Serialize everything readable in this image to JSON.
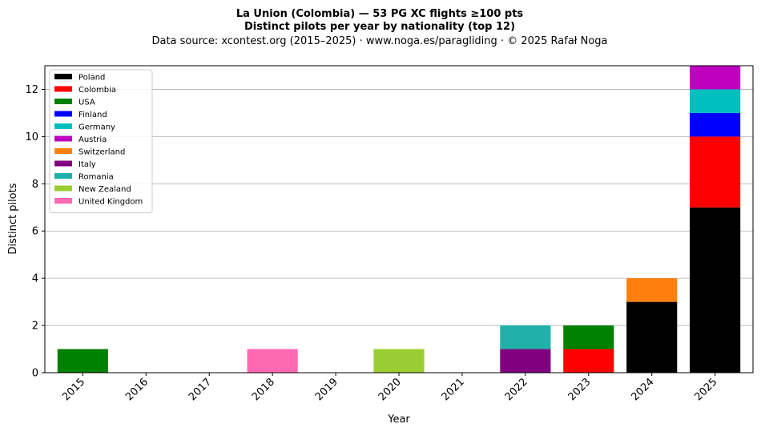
{
  "chart_data": {
    "type": "bar",
    "stacked": true,
    "title_line1": "La Union (Colombia)  —  53 PG XC flights ≥100 pts",
    "title_line2": "Distinct pilots per year by nationality (top 12)",
    "subtitle": "Data source: xcontest.org (2015–2025)  ·  www.noga.es/paragliding  ·  © 2025 Rafał Noga",
    "xlabel": "Year",
    "ylabel": "Distinct pilots",
    "ylim": [
      0,
      13
    ],
    "yticks": [
      0,
      2,
      4,
      6,
      8,
      10,
      12
    ],
    "grid": "y",
    "legend_position": "top-left",
    "categories": [
      "2015",
      "2016",
      "2017",
      "2018",
      "2019",
      "2020",
      "2021",
      "2022",
      "2023",
      "2024",
      "2025"
    ],
    "series": [
      {
        "name": "Poland",
        "color": "#000000",
        "values": [
          0,
          0,
          0,
          0,
          0,
          0,
          0,
          0,
          0,
          3,
          7
        ]
      },
      {
        "name": "Colombia",
        "color": "#ff0000",
        "values": [
          0,
          0,
          0,
          0,
          0,
          0,
          0,
          0,
          1,
          0,
          3
        ]
      },
      {
        "name": "USA",
        "color": "#008000",
        "values": [
          1,
          0,
          0,
          0,
          0,
          0,
          0,
          0,
          1,
          0,
          0
        ]
      },
      {
        "name": "Finland",
        "color": "#0000ff",
        "values": [
          0,
          0,
          0,
          0,
          0,
          0,
          0,
          0,
          0,
          0,
          1
        ]
      },
      {
        "name": "Germany",
        "color": "#00bfbf",
        "values": [
          0,
          0,
          0,
          0,
          0,
          0,
          0,
          0,
          0,
          0,
          1
        ]
      },
      {
        "name": "Austria",
        "color": "#bf00bf",
        "values": [
          0,
          0,
          0,
          0,
          0,
          0,
          0,
          0,
          0,
          0,
          1
        ]
      },
      {
        "name": "Switzerland",
        "color": "#ff7f0e",
        "values": [
          0,
          0,
          0,
          0,
          0,
          0,
          0,
          0,
          0,
          1,
          0
        ]
      },
      {
        "name": "Italy",
        "color": "#800080",
        "values": [
          0,
          0,
          0,
          0,
          0,
          0,
          0,
          1,
          0,
          0,
          0
        ]
      },
      {
        "name": "Romania",
        "color": "#20b2aa",
        "values": [
          0,
          0,
          0,
          0,
          0,
          0,
          0,
          1,
          0,
          0,
          0
        ]
      },
      {
        "name": "New Zealand",
        "color": "#9acd32",
        "values": [
          0,
          0,
          0,
          0,
          0,
          1,
          0,
          0,
          0,
          0,
          0
        ]
      },
      {
        "name": "United Kingdom",
        "color": "#ff69b4",
        "values": [
          0,
          0,
          0,
          1,
          0,
          0,
          0,
          0,
          0,
          0,
          0
        ]
      }
    ]
  }
}
